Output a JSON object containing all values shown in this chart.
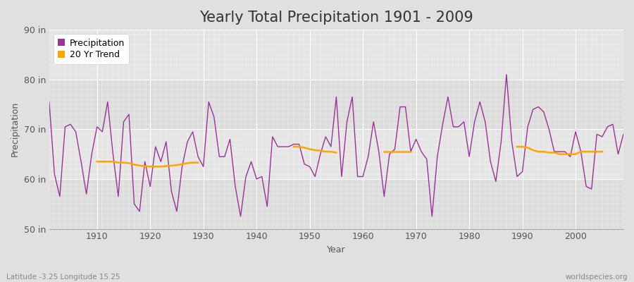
{
  "title": "Yearly Total Precipitation 1901 - 2009",
  "xlabel": "Year",
  "ylabel": "Precipitation",
  "lat_lon_label": "Latitude -3.25 Longitude 15.25",
  "watermark": "worldspecies.org",
  "years": [
    1901,
    1902,
    1903,
    1904,
    1905,
    1906,
    1907,
    1908,
    1909,
    1910,
    1911,
    1912,
    1913,
    1914,
    1915,
    1916,
    1917,
    1918,
    1919,
    1920,
    1921,
    1922,
    1923,
    1924,
    1925,
    1926,
    1927,
    1928,
    1929,
    1930,
    1931,
    1932,
    1933,
    1934,
    1935,
    1936,
    1937,
    1938,
    1939,
    1940,
    1941,
    1942,
    1943,
    1944,
    1945,
    1946,
    1947,
    1948,
    1949,
    1950,
    1951,
    1952,
    1953,
    1954,
    1955,
    1956,
    1957,
    1958,
    1959,
    1960,
    1961,
    1962,
    1963,
    1964,
    1965,
    1966,
    1967,
    1968,
    1969,
    1970,
    1971,
    1972,
    1973,
    1974,
    1975,
    1976,
    1977,
    1978,
    1979,
    1980,
    1981,
    1982,
    1983,
    1984,
    1985,
    1986,
    1987,
    1988,
    1989,
    1990,
    1991,
    1992,
    1993,
    1994,
    1995,
    1996,
    1997,
    1998,
    1999,
    2000,
    2001,
    2002,
    2003,
    2004,
    2005,
    2006,
    2007,
    2008,
    2009
  ],
  "precip_in": [
    75.5,
    61.0,
    56.5,
    70.5,
    71.0,
    69.5,
    63.5,
    57.0,
    65.0,
    70.5,
    69.5,
    75.5,
    65.0,
    56.5,
    71.5,
    73.0,
    55.0,
    53.5,
    63.5,
    58.5,
    66.5,
    63.5,
    67.5,
    57.5,
    53.5,
    62.5,
    67.5,
    69.5,
    64.5,
    62.5,
    75.5,
    72.5,
    64.5,
    64.5,
    68.0,
    58.5,
    52.5,
    60.5,
    63.5,
    60.0,
    60.5,
    54.5,
    68.5,
    66.5,
    66.5,
    66.5,
    67.0,
    67.0,
    63.0,
    62.5,
    60.5,
    65.0,
    68.5,
    66.5,
    76.5,
    60.5,
    71.5,
    76.5,
    60.5,
    60.5,
    64.5,
    71.5,
    65.5,
    56.5,
    65.0,
    66.0,
    74.5,
    74.5,
    65.5,
    68.0,
    65.5,
    64.0,
    52.5,
    64.5,
    71.0,
    76.5,
    70.5,
    70.5,
    71.5,
    64.5,
    71.5,
    75.5,
    71.5,
    63.5,
    59.5,
    67.5,
    81.0,
    67.5,
    60.5,
    61.5,
    70.5,
    74.0,
    74.5,
    73.5,
    70.0,
    65.5,
    65.5,
    65.5,
    64.5,
    69.5,
    65.5,
    58.5,
    58.0,
    69.0,
    68.5,
    70.5,
    71.0,
    65.0,
    69.0
  ],
  "trend_segments": [
    {
      "years": [
        1910,
        1911,
        1912,
        1913,
        1914,
        1915,
        1916,
        1917,
        1918,
        1919,
        1920,
        1921,
        1922,
        1923,
        1924,
        1925,
        1926,
        1927,
        1928,
        1929
      ],
      "vals": [
        63.5,
        63.5,
        63.5,
        63.5,
        63.3,
        63.3,
        63.2,
        62.9,
        62.7,
        62.6,
        62.5,
        62.5,
        62.5,
        62.6,
        62.7,
        62.8,
        63.0,
        63.2,
        63.3,
        63.3
      ]
    },
    {
      "years": [
        1947,
        1948,
        1949,
        1950,
        1951,
        1952,
        1953,
        1954,
        1955
      ],
      "vals": [
        66.5,
        66.5,
        66.3,
        66.0,
        65.8,
        65.7,
        65.5,
        65.5,
        65.3
      ]
    },
    {
      "years": [
        1964,
        1965,
        1966,
        1967,
        1968,
        1969
      ],
      "vals": [
        65.5,
        65.5,
        65.5,
        65.5,
        65.5,
        65.5
      ]
    },
    {
      "years": [
        1989,
        1990,
        1991,
        1992,
        1993,
        1994,
        1995,
        1996,
        1997,
        1998,
        1999,
        2000,
        2001,
        2002,
        2003,
        2004,
        2005
      ],
      "vals": [
        66.5,
        66.5,
        66.3,
        65.8,
        65.5,
        65.5,
        65.3,
        65.3,
        65.0,
        65.0,
        65.0,
        65.0,
        65.5,
        65.5,
        65.5,
        65.5,
        65.5
      ]
    }
  ],
  "precip_color": "#993399",
  "trend_color": "#FFA500",
  "fig_bg_color": "#E0E0E0",
  "plot_bg_color": "#E8E8E8",
  "band_color_1": "#DCDCDC",
  "band_color_2": "#E4E4E4",
  "grid_color": "#FFFFFF",
  "ylim": [
    50,
    90
  ],
  "yticks": [
    50,
    60,
    70,
    80,
    90
  ],
  "ytick_labels": [
    "50 in",
    "60 in",
    "70 in",
    "80 in",
    "90 in"
  ],
  "xticks": [
    1910,
    1920,
    1930,
    1940,
    1950,
    1960,
    1970,
    1980,
    1990,
    2000
  ],
  "xmin": 1901,
  "xmax": 2009,
  "title_fontsize": 15,
  "label_fontsize": 9,
  "tick_fontsize": 9
}
